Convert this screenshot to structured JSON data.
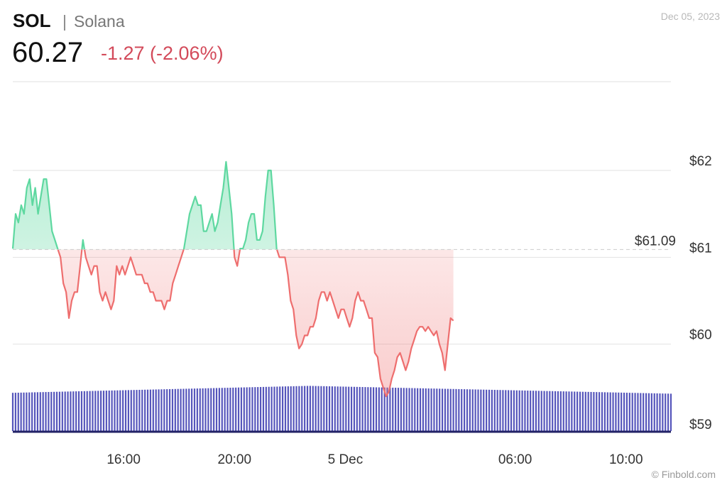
{
  "header": {
    "symbol": "SOL",
    "separator": "|",
    "name": "Solana",
    "price": "60.27",
    "change": "-1.27 (-2.06%)",
    "date": "Dec 05, 2023",
    "credit": "© Finbold.com"
  },
  "colors": {
    "up": "#5ed8a0",
    "down": "#ee6e6e",
    "volume": "#5555bb",
    "grid": "#e2e2e2"
  },
  "chart_data": {
    "type": "line",
    "title": "",
    "xlabel": "",
    "ylabel": "",
    "ylim": [
      59,
      63
    ],
    "y_ticks": [
      {
        "value": 59,
        "label": "$59"
      },
      {
        "value": 60,
        "label": "$60"
      },
      {
        "value": 61,
        "label": "$61"
      },
      {
        "value": 62,
        "label": "$62"
      }
    ],
    "x_ticks": [
      {
        "label": "16:00",
        "t": 15.9
      },
      {
        "label": "20:00",
        "t": 19.85
      },
      {
        "label": "5 Dec",
        "t": 23.8
      },
      {
        "label": "06:00",
        "t": 29.85
      },
      {
        "label": "10:00",
        "t": 33.8
      }
    ],
    "xlim": [
      11.95,
      35.4
    ],
    "reference": {
      "value": 61.09,
      "label": "$61.09"
    },
    "series": [
      {
        "values": [
          [
            11.95,
            61.1
          ],
          [
            12.05,
            61.5
          ],
          [
            12.15,
            61.4
          ],
          [
            12.25,
            61.6
          ],
          [
            12.35,
            61.5
          ],
          [
            12.45,
            61.8
          ],
          [
            12.55,
            61.9
          ],
          [
            12.65,
            61.6
          ],
          [
            12.75,
            61.8
          ],
          [
            12.85,
            61.5
          ],
          [
            12.95,
            61.7
          ],
          [
            13.05,
            61.9
          ],
          [
            13.15,
            61.9
          ],
          [
            13.25,
            61.6
          ],
          [
            13.35,
            61.3
          ],
          [
            13.45,
            61.2
          ],
          [
            13.55,
            61.1
          ],
          [
            13.65,
            61.0
          ],
          [
            13.75,
            60.7
          ],
          [
            13.85,
            60.6
          ],
          [
            13.95,
            60.3
          ],
          [
            14.05,
            60.5
          ],
          [
            14.15,
            60.6
          ],
          [
            14.25,
            60.6
          ],
          [
            14.35,
            60.9
          ],
          [
            14.45,
            61.2
          ],
          [
            14.55,
            61.0
          ],
          [
            14.65,
            60.9
          ],
          [
            14.75,
            60.8
          ],
          [
            14.85,
            60.9
          ],
          [
            14.95,
            60.9
          ],
          [
            15.05,
            60.6
          ],
          [
            15.15,
            60.5
          ],
          [
            15.25,
            60.6
          ],
          [
            15.35,
            60.5
          ],
          [
            15.45,
            60.4
          ],
          [
            15.55,
            60.5
          ],
          [
            15.65,
            60.9
          ],
          [
            15.75,
            60.8
          ],
          [
            15.85,
            60.9
          ],
          [
            15.95,
            60.8
          ],
          [
            16.05,
            60.9
          ],
          [
            16.15,
            61.0
          ],
          [
            16.25,
            60.9
          ],
          [
            16.35,
            60.8
          ],
          [
            16.45,
            60.8
          ],
          [
            16.55,
            60.8
          ],
          [
            16.65,
            60.7
          ],
          [
            16.75,
            60.7
          ],
          [
            16.85,
            60.6
          ],
          [
            16.95,
            60.6
          ],
          [
            17.05,
            60.5
          ],
          [
            17.15,
            60.5
          ],
          [
            17.25,
            60.5
          ],
          [
            17.35,
            60.4
          ],
          [
            17.45,
            60.5
          ],
          [
            17.55,
            60.5
          ],
          [
            17.65,
            60.7
          ],
          [
            17.75,
            60.8
          ],
          [
            17.85,
            60.9
          ],
          [
            17.95,
            61.0
          ],
          [
            18.05,
            61.1
          ],
          [
            18.15,
            61.3
          ],
          [
            18.25,
            61.5
          ],
          [
            18.35,
            61.6
          ],
          [
            18.45,
            61.7
          ],
          [
            18.55,
            61.6
          ],
          [
            18.65,
            61.6
          ],
          [
            18.75,
            61.3
          ],
          [
            18.85,
            61.3
          ],
          [
            18.95,
            61.4
          ],
          [
            19.05,
            61.5
          ],
          [
            19.15,
            61.3
          ],
          [
            19.25,
            61.4
          ],
          [
            19.35,
            61.6
          ],
          [
            19.45,
            61.8
          ],
          [
            19.55,
            62.1
          ],
          [
            19.65,
            61.8
          ],
          [
            19.75,
            61.5
          ],
          [
            19.85,
            61.0
          ],
          [
            19.95,
            60.9
          ],
          [
            20.05,
            61.1
          ],
          [
            20.15,
            61.1
          ],
          [
            20.25,
            61.2
          ],
          [
            20.35,
            61.4
          ],
          [
            20.45,
            61.5
          ],
          [
            20.55,
            61.5
          ],
          [
            20.65,
            61.2
          ],
          [
            20.75,
            61.2
          ],
          [
            20.85,
            61.3
          ],
          [
            20.95,
            61.7
          ],
          [
            21.05,
            62.0
          ],
          [
            21.15,
            62.0
          ],
          [
            21.25,
            61.6
          ],
          [
            21.35,
            61.1
          ],
          [
            21.45,
            61.0
          ],
          [
            21.55,
            61.0
          ],
          [
            21.65,
            61.0
          ],
          [
            21.75,
            60.8
          ],
          [
            21.85,
            60.5
          ],
          [
            21.95,
            60.4
          ],
          [
            22.05,
            60.1
          ],
          [
            22.15,
            59.95
          ],
          [
            22.25,
            60.0
          ],
          [
            22.35,
            60.1
          ],
          [
            22.45,
            60.1
          ],
          [
            22.55,
            60.2
          ],
          [
            22.65,
            60.2
          ],
          [
            22.75,
            60.3
          ],
          [
            22.85,
            60.5
          ],
          [
            22.95,
            60.6
          ],
          [
            23.05,
            60.6
          ],
          [
            23.15,
            60.5
          ],
          [
            23.25,
            60.6
          ],
          [
            23.35,
            60.5
          ],
          [
            23.45,
            60.4
          ],
          [
            23.55,
            60.3
          ],
          [
            23.65,
            60.4
          ],
          [
            23.75,
            60.4
          ],
          [
            23.85,
            60.3
          ],
          [
            23.95,
            60.2
          ],
          [
            24.05,
            60.3
          ],
          [
            24.15,
            60.5
          ],
          [
            24.25,
            60.6
          ],
          [
            24.35,
            60.5
          ],
          [
            24.45,
            60.5
          ],
          [
            24.55,
            60.4
          ],
          [
            24.65,
            60.3
          ],
          [
            24.75,
            60.3
          ],
          [
            24.85,
            59.9
          ],
          [
            24.95,
            59.85
          ],
          [
            25.05,
            59.6
          ],
          [
            25.15,
            59.5
          ],
          [
            25.25,
            59.4
          ],
          [
            25.35,
            59.45
          ],
          [
            25.45,
            59.6
          ],
          [
            25.55,
            59.7
          ],
          [
            25.65,
            59.85
          ],
          [
            25.75,
            59.9
          ],
          [
            25.85,
            59.8
          ],
          [
            25.95,
            59.7
          ],
          [
            26.05,
            59.8
          ],
          [
            26.15,
            59.95
          ],
          [
            26.25,
            60.05
          ],
          [
            26.35,
            60.15
          ],
          [
            26.45,
            60.2
          ],
          [
            26.55,
            60.2
          ],
          [
            26.65,
            60.15
          ],
          [
            26.75,
            60.2
          ],
          [
            26.85,
            60.15
          ],
          [
            26.95,
            60.1
          ],
          [
            27.05,
            60.15
          ],
          [
            27.15,
            60.0
          ],
          [
            27.25,
            59.9
          ],
          [
            27.35,
            59.7
          ],
          [
            27.45,
            60.0
          ],
          [
            27.55,
            60.3
          ],
          [
            27.65,
            60.27
          ]
        ]
      }
    ],
    "volume": {
      "baseline": 59.0,
      "top_left": 59.44,
      "top_mid": 59.52,
      "top_right": 59.43
    }
  }
}
